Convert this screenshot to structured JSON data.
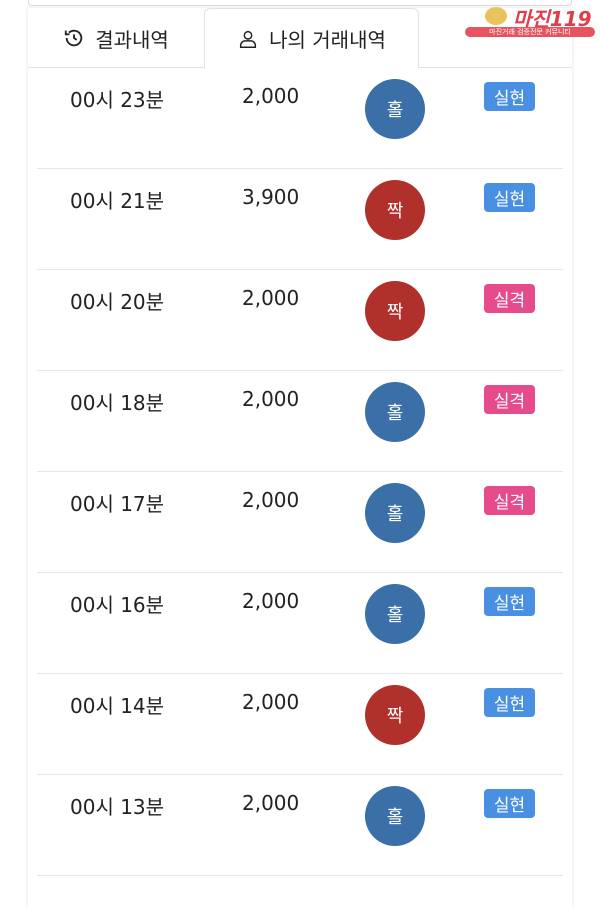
{
  "tabs": [
    {
      "label": "결과내역",
      "icon": "history-icon",
      "active": false
    },
    {
      "label": "나의 거래내역",
      "icon": "user-icon",
      "active": true
    }
  ],
  "watermark": {
    "title": "마진119",
    "subtitle": "마진거래 검증전문 커뮤니티"
  },
  "colors": {
    "odd": "#3b6fa8",
    "even": "#b0302c",
    "win": "#4a90e2",
    "lose": "#e64b8c"
  },
  "rows": [
    {
      "time": "00시 23분",
      "amount": "2,000",
      "pick": "홀",
      "result": "실현"
    },
    {
      "time": "00시 21분",
      "amount": "3,900",
      "pick": "짝",
      "result": "실현"
    },
    {
      "time": "00시 20분",
      "amount": "2,000",
      "pick": "짝",
      "result": "실격"
    },
    {
      "time": "00시 18분",
      "amount": "2,000",
      "pick": "홀",
      "result": "실격"
    },
    {
      "time": "00시 17분",
      "amount": "2,000",
      "pick": "홀",
      "result": "실격"
    },
    {
      "time": "00시 16분",
      "amount": "2,000",
      "pick": "홀",
      "result": "실현"
    },
    {
      "time": "00시 14분",
      "amount": "2,000",
      "pick": "짝",
      "result": "실현"
    },
    {
      "time": "00시 13분",
      "amount": "2,000",
      "pick": "홀",
      "result": "실현"
    }
  ]
}
